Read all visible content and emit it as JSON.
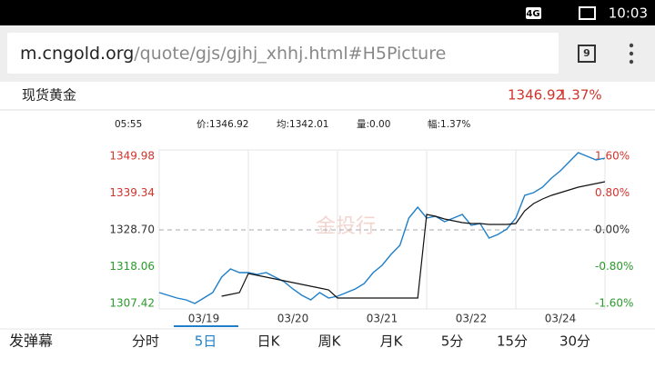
{
  "status_bar": {
    "network": "4G",
    "time": "10:03"
  },
  "url_bar": {
    "domain": "m.cngold.org",
    "path": "/quote/gjs/gjhj_xhhj.html#H5Picture",
    "tab_count": "9"
  },
  "header": {
    "name": "现货黄金",
    "price": "1346.92",
    "change": "1.37%"
  },
  "info": [
    "05:55",
    "价:1346.92",
    "均:1342.01",
    "量:0.00",
    "幅:1.37%"
  ],
  "watermark": "金投行",
  "chart_data": {
    "type": "line",
    "x": [
      0,
      0.1,
      0.2,
      0.3,
      0.4,
      0.5,
      0.6,
      0.7,
      0.8,
      0.9,
      1,
      1.1,
      1.2,
      1.3,
      1.4,
      1.5,
      1.6,
      1.7,
      1.8,
      1.9,
      2,
      2.1,
      2.2,
      2.3,
      2.4,
      2.5,
      2.6,
      2.7,
      2.8,
      2.9,
      3,
      3.1,
      3.2,
      3.3,
      3.4,
      3.5,
      3.6,
      3.7,
      3.8,
      3.9,
      4,
      4.1,
      4.2,
      4.3,
      4.4,
      4.5,
      4.6,
      4.7,
      4.8,
      4.9,
      5
    ],
    "xlim": [
      0,
      5
    ],
    "xticks": [
      {
        "value": 0.5,
        "label": "03/19"
      },
      {
        "value": 1.5,
        "label": "03/20"
      },
      {
        "value": 2.5,
        "label": "03/21"
      },
      {
        "value": 3.5,
        "label": "03/22"
      },
      {
        "value": 4.5,
        "label": "03/24"
      }
    ],
    "series": [
      {
        "color": "#1f7fc9",
        "values": [
          1310.57,
          1309.79,
          1309.0,
          1308.47,
          1307.42,
          1309.0,
          1310.57,
          1315.04,
          1317.4,
          1316.35,
          1316.35,
          1315.83,
          1316.35,
          1315.04,
          1313.73,
          1311.62,
          1309.79,
          1308.47,
          1310.57,
          1309.0,
          1309.52,
          1310.57,
          1311.62,
          1313.2,
          1316.35,
          1318.45,
          1321.61,
          1324.23,
          1332.12,
          1335.27,
          1332.12,
          1332.64,
          1331.06,
          1332.12,
          1333.17,
          1330.01,
          1330.54,
          1326.34,
          1327.39,
          1328.96,
          1332.12,
          1338.68,
          1339.47,
          1341.05,
          1343.67,
          1345.78,
          1348.4,
          1351.03,
          1349.98,
          1348.93,
          1349.45
        ]
      },
      {
        "color": "#111111",
        "values": [
          null,
          null,
          null,
          null,
          null,
          null,
          null,
          1309.52,
          1310.05,
          1310.57,
          1316.09,
          1315.56,
          1315.04,
          1314.51,
          1313.99,
          1313.46,
          1312.94,
          1312.41,
          1311.89,
          1311.36,
          1309.0,
          1309.0,
          1309.0,
          1309.0,
          1309.0,
          1309.0,
          1309.0,
          1309.0,
          1309.0,
          1309.0,
          1333.17,
          1332.64,
          1331.85,
          1331.33,
          1330.8,
          1330.54,
          1330.54,
          1330.28,
          1330.28,
          1330.28,
          1330.54,
          1334.22,
          1336.32,
          1337.63,
          1338.68,
          1339.47,
          1340.26,
          1341.05,
          1341.57,
          1342.1,
          1342.62
        ]
      }
    ],
    "ylim": [
      1305.84,
      1351.82
    ],
    "yticks": [
      1349.98,
      1339.34,
      {
        "value": 1328.7,
        "label": "1328.70"
      },
      1318.06,
      1307.42
    ],
    "y2lim": [
      -1.72,
      1.74
    ],
    "y2ticks": [
      {
        "value": 1.6,
        "label": "1.60%"
      },
      {
        "value": 0.8,
        "label": "0.80%"
      },
      {
        "value": 0,
        "label": "0.00%"
      },
      {
        "value": -0.8,
        "label": "-0.80%"
      },
      {
        "value": -1.6,
        "label": "-1.60%"
      }
    ],
    "up_color": "#d0342c",
    "down_color": "#2a9a2a",
    "flat_color": "#333333"
  },
  "tabs": {
    "danmaku": "发弹幕",
    "items": [
      "分时",
      "5日",
      "日K",
      "周K",
      "月K",
      "5分",
      "15分",
      "30分"
    ],
    "active": 1,
    "active_color": "#1f7fc9"
  }
}
